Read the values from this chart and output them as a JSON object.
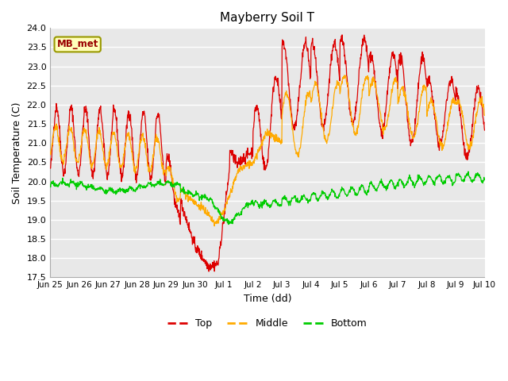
{
  "title": "Mayberry Soil T",
  "xlabel": "Time (dd)",
  "ylabel": "Soil Temperature (C)",
  "ylim": [
    17.5,
    24.0
  ],
  "yticks": [
    17.5,
    18.0,
    18.5,
    19.0,
    19.5,
    20.0,
    20.5,
    21.0,
    21.5,
    22.0,
    22.5,
    23.0,
    23.5,
    24.0
  ],
  "xtick_labels": [
    "Jun 25",
    "Jun 26",
    "Jun 27",
    "Jun 28",
    "Jun 29",
    "Jun 30",
    "Jul 1",
    "Jul 2",
    "Jul 3",
    "Jul 4",
    "Jul 5",
    "Jul 6",
    "Jul 7",
    "Jul 8",
    "Jul 9",
    "Jul 10"
  ],
  "colors": {
    "top": "#dd0000",
    "middle": "#ffaa00",
    "bottom": "#00cc00"
  },
  "plot_bg": "#e8e8e8",
  "fig_bg": "#ffffff",
  "grid_color": "#ffffff",
  "annotation_text": "MB_met",
  "annotation_fg": "#990000",
  "annotation_bg": "#ffffbb",
  "annotation_border": "#999900",
  "legend_labels": [
    "Top",
    "Middle",
    "Bottom"
  ]
}
